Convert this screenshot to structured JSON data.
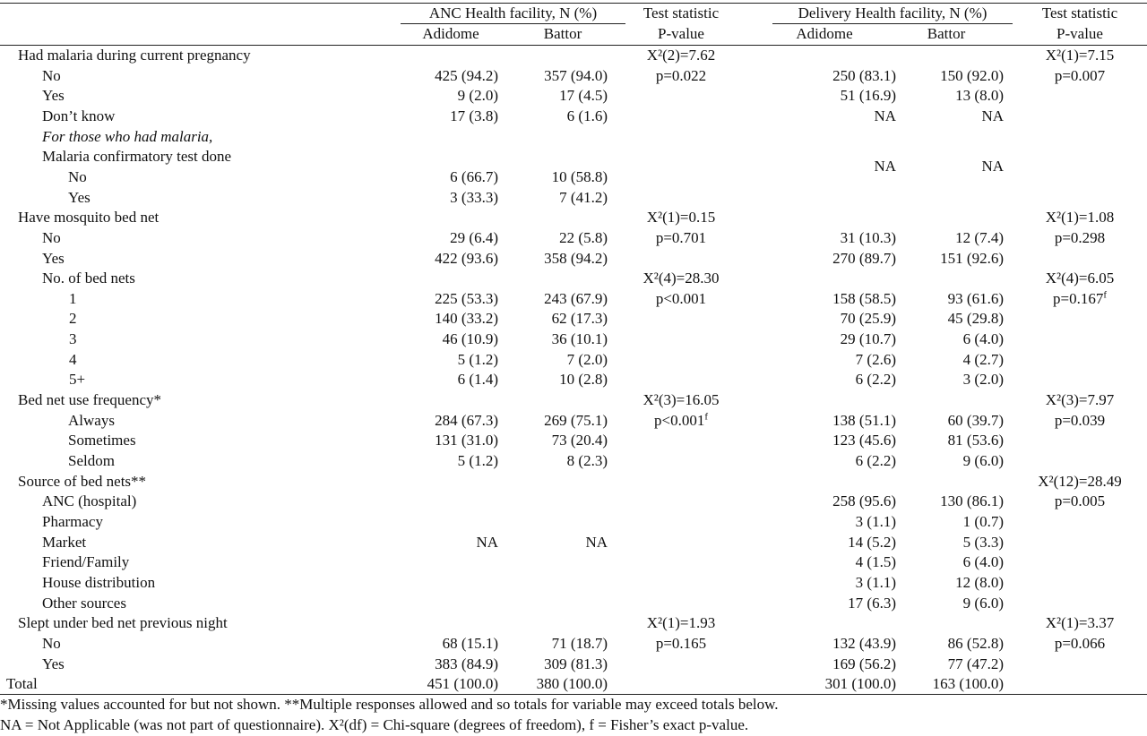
{
  "header": {
    "anc": {
      "title": "ANC Health facility, N (%)",
      "sub": [
        "Adidome",
        "Battor"
      ]
    },
    "anc_test": [
      "Test statistic",
      "P-value"
    ],
    "delivery": {
      "title": "Delivery Health facility, N (%)",
      "sub": [
        "Adidome",
        "Battor"
      ]
    },
    "delivery_test": [
      "Test statistic",
      "P-value"
    ]
  },
  "rows": [
    [
      "Had malaria during current pregnancy",
      null,
      null,
      "X²(2)=7.62",
      null,
      null,
      "X²(1)=7.15"
    ],
    [
      "No",
      "425 (94.2)",
      "357 (94.0)",
      "p=0.022",
      "250 (83.1)",
      "150 (92.0)",
      "p=0.007"
    ],
    [
      "Yes",
      "9 (2.0)",
      "17 (4.5)",
      null,
      "51 (16.9)",
      "13 (8.0)",
      null
    ],
    [
      "Don’t know",
      "17 (3.8)",
      "6 (1.6)",
      null,
      "NA",
      "NA",
      null
    ],
    [
      "For those who had malaria,",
      null,
      null,
      null,
      null,
      null,
      null
    ],
    [
      "Malaria confirmatory test done",
      null,
      null,
      null,
      "NA",
      "NA",
      null
    ],
    [
      "No",
      "6 (66.7)",
      "10 (58.8)",
      null,
      null,
      null,
      null
    ],
    [
      "Yes",
      "3 (33.3)",
      "7 (41.2)",
      null,
      null,
      null,
      null
    ],
    [
      "Have mosquito bed net",
      null,
      null,
      "X²(1)=0.15",
      null,
      null,
      "X²(1)=1.08"
    ],
    [
      "No",
      "29 (6.4)",
      "22 (5.8)",
      "p=0.701",
      "31 (10.3)",
      "12 (7.4)",
      "p=0.298"
    ],
    [
      "Yes",
      "422 (93.6)",
      "358 (94.2)",
      null,
      "270 (89.7)",
      "151 (92.6)",
      null
    ],
    [
      "No. of bed nets",
      null,
      null,
      "X²(4)=28.30",
      null,
      null,
      "X²(4)=6.05"
    ],
    [
      "1",
      "225 (53.3)",
      "243 (67.9)",
      "p<0.001",
      "158 (58.5)",
      "93 (61.6)",
      {
        "text": "p=0.167",
        "sup": "f"
      }
    ],
    [
      "2",
      "140 (33.2)",
      "62 (17.3)",
      null,
      "70 (25.9)",
      "45 (29.8)",
      null
    ],
    [
      "3",
      "46 (10.9)",
      "36 (10.1)",
      null,
      "29 (10.7)",
      "6 (4.0)",
      null
    ],
    [
      "4",
      "5 (1.2)",
      "7 (2.0)",
      null,
      "7 (2.6)",
      "4 (2.7)",
      null
    ],
    [
      "5+",
      "6 (1.4)",
      "10 (2.8)",
      null,
      "6 (2.2)",
      "3 (2.0)",
      null
    ],
    [
      "Bed net use frequency*",
      null,
      null,
      "X²(3)=16.05",
      null,
      null,
      "X²(3)=7.97"
    ],
    [
      "Always",
      "284 (67.3)",
      "269 (75.1)",
      {
        "text": "p<0.001",
        "sup": "f"
      },
      "138 (51.1)",
      "60 (39.7)",
      "p=0.039"
    ],
    [
      "Sometimes",
      "131 (31.0)",
      "73 (20.4)",
      null,
      "123 (45.6)",
      "81 (53.6)",
      null
    ],
    [
      "Seldom",
      "5 (1.2)",
      "8 (2.3)",
      null,
      "6 (2.2)",
      "9 (6.0)",
      null
    ],
    [
      "Source of bed nets**",
      null,
      null,
      null,
      null,
      null,
      "X²(12)=28.49"
    ],
    [
      "ANC (hospital)",
      null,
      null,
      null,
      "258 (95.6)",
      "130 (86.1)",
      "p=0.005"
    ],
    [
      "Pharmacy",
      null,
      null,
      null,
      "3 (1.1)",
      "1 (0.7)",
      null
    ],
    [
      "Market",
      "NA",
      "NA",
      null,
      "14 (5.2)",
      "5 (3.3)",
      null
    ],
    [
      "Friend/Family",
      null,
      null,
      null,
      "4 (1.5)",
      "6 (4.0)",
      null
    ],
    [
      "House distribution",
      null,
      null,
      null,
      "3 (1.1)",
      "12 (8.0)",
      null
    ],
    [
      "Other sources",
      null,
      null,
      null,
      "17 (6.3)",
      "9 (6.0)",
      null
    ],
    [
      "Slept under bed net previous night",
      null,
      null,
      "X²(1)=1.93",
      null,
      null,
      "X²(1)=3.37"
    ],
    [
      "No",
      "68 (15.1)",
      "71 (18.7)",
      "p=0.165",
      "132 (43.9)",
      "86 (52.8)",
      "p=0.066"
    ],
    [
      "Yes",
      "383 (84.9)",
      "309 (81.3)",
      null,
      "169 (56.2)",
      "77 (47.2)",
      null
    ],
    [
      "Total",
      "451 (100.0)",
      "380 (100.0)",
      null,
      "301 (100.0)",
      "163 (100.0)",
      null
    ]
  ],
  "footnotes": [
    "*Missing values accounted for but not shown. **Multiple responses allowed and so totals for variable may exceed totals below.",
    "NA = Not Applicable (was not part of questionnaire). X²(df) = Chi-square (degrees of freedom), f = Fisher’s exact p-value."
  ]
}
